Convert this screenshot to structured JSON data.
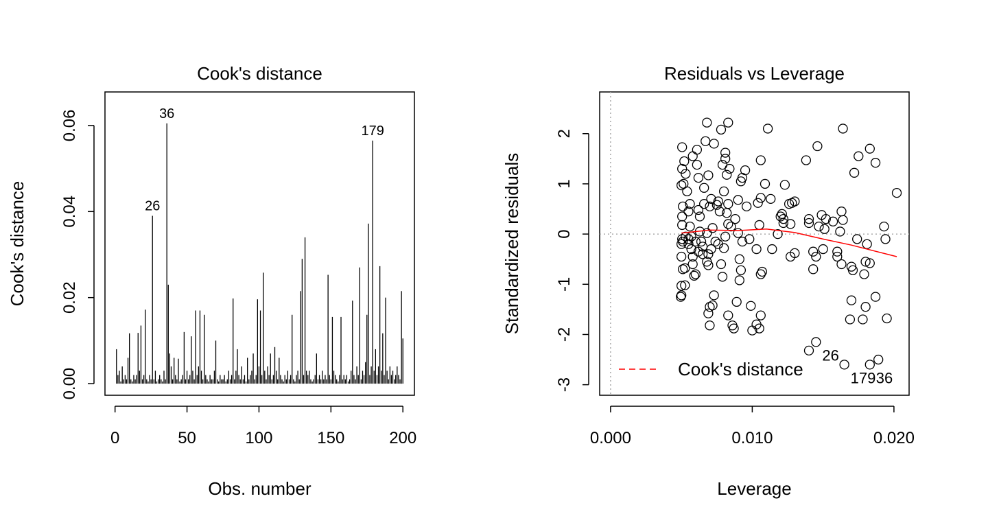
{
  "chart_data": [
    {
      "type": "spike",
      "title": "Cook's distance",
      "xlabel": "Obs. number",
      "ylabel": "Cook's distance",
      "color": "#000000",
      "x": [
        1,
        2,
        3,
        4,
        5,
        6,
        7,
        8,
        9,
        10,
        11,
        12,
        13,
        14,
        15,
        16,
        17,
        18,
        19,
        20,
        21,
        22,
        23,
        24,
        25,
        26,
        27,
        28,
        29,
        30,
        31,
        32,
        33,
        34,
        35,
        36,
        37,
        38,
        39,
        40,
        41,
        42,
        43,
        44,
        45,
        46,
        47,
        48,
        49,
        50,
        51,
        52,
        53,
        54,
        55,
        56,
        57,
        58,
        59,
        60,
        61,
        62,
        63,
        64,
        65,
        66,
        67,
        68,
        69,
        70,
        71,
        72,
        73,
        74,
        75,
        76,
        77,
        78,
        79,
        80,
        81,
        82,
        83,
        84,
        85,
        86,
        87,
        88,
        89,
        90,
        91,
        92,
        93,
        94,
        95,
        96,
        97,
        98,
        99,
        100,
        101,
        102,
        103,
        104,
        105,
        106,
        107,
        108,
        109,
        110,
        111,
        112,
        113,
        114,
        115,
        116,
        117,
        118,
        119,
        120,
        121,
        122,
        123,
        124,
        125,
        126,
        127,
        128,
        129,
        130,
        131,
        132,
        133,
        134,
        135,
        136,
        137,
        138,
        139,
        140,
        141,
        142,
        143,
        144,
        145,
        146,
        147,
        148,
        149,
        150,
        151,
        152,
        153,
        154,
        155,
        156,
        157,
        158,
        159,
        160,
        161,
        162,
        163,
        164,
        165,
        166,
        167,
        168,
        169,
        170,
        171,
        172,
        173,
        174,
        175,
        176,
        177,
        178,
        179,
        180,
        181,
        182,
        183,
        184,
        185,
        186,
        187,
        188,
        189,
        190,
        191,
        192,
        193,
        194,
        195,
        196,
        197,
        198,
        199,
        200
      ],
      "values": [
        0.008,
        0.002,
        0.003,
        0.0005,
        0.004,
        0.001,
        0.002,
        0.001,
        0.006,
        0.0117,
        0.001,
        0.0005,
        0.002,
        0.001,
        0.002,
        0.0118,
        0.003,
        0.0135,
        0.001,
        0.002,
        0.0172,
        0.001,
        0.0005,
        0.002,
        0.001,
        0.039,
        0.001,
        0.003,
        0.0005,
        0.001,
        0.002,
        0.001,
        0.0005,
        0.003,
        0.001,
        0.0605,
        0.023,
        0.007,
        0.004,
        0.001,
        0.006,
        0.002,
        0.001,
        0.0058,
        0.0005,
        0.001,
        0.002,
        0.012,
        0.001,
        0.003,
        0.001,
        0.002,
        0.011,
        0.003,
        0.001,
        0.017,
        0.002,
        0.004,
        0.017,
        0.003,
        0.001,
        0.016,
        0.002,
        0.001,
        0.0005,
        0.002,
        0.001,
        0.001,
        0.003,
        0.01,
        0.001,
        0.0005,
        0.002,
        0.001,
        0.001,
        0.002,
        0.0005,
        0.001,
        0.003,
        0.001,
        0.002,
        0.0198,
        0.001,
        0.003,
        0.008,
        0.002,
        0.001,
        0.004,
        0.001,
        0.002,
        0.0005,
        0.006,
        0.001,
        0.002,
        0.003,
        0.007,
        0.001,
        0.002,
        0.0196,
        0.004,
        0.017,
        0.002,
        0.0258,
        0.003,
        0.001,
        0.004,
        0.002,
        0.007,
        0.001,
        0.002,
        0.0085,
        0.003,
        0.001,
        0.006,
        0.002,
        0.001,
        0.0005,
        0.002,
        0.001,
        0.003,
        0.001,
        0.002,
        0.016,
        0.001,
        0.0005,
        0.002,
        0.003,
        0.001,
        0.0215,
        0.029,
        0.002,
        0.034,
        0.003,
        0.002,
        0.003,
        0.001,
        0.0005,
        0.001,
        0.002,
        0.007,
        0.001,
        0.002,
        0.001,
        0.003,
        0.001,
        0.002,
        0.001,
        0.0253,
        0.002,
        0.001,
        0.0155,
        0.003,
        0.002,
        0.001,
        0.0005,
        0.002,
        0.0155,
        0.001,
        0.002,
        0.001,
        0.002,
        0.0005,
        0.001,
        0.003,
        0.0193,
        0.002,
        0.001,
        0.004,
        0.002,
        0.027,
        0.001,
        0.003,
        0.002,
        0.005,
        0.016,
        0.0372,
        0.002,
        0.004,
        0.0565,
        0.003,
        0.008,
        0.002,
        0.004,
        0.0273,
        0.003,
        0.0117,
        0.002,
        0.02,
        0.003,
        0.001,
        0.004,
        0.002,
        0.003,
        0.001,
        0.002,
        0.004,
        0.002,
        0.001,
        0.0215,
        0.0105
      ],
      "annotations": [
        {
          "text": "26",
          "x": 26
        },
        {
          "text": "36",
          "x": 36
        },
        {
          "text": "179",
          "x": 179
        }
      ],
      "xlim": [
        -7,
        208
      ],
      "ylim": [
        -0.0027,
        0.0678
      ],
      "xticks": [
        0,
        50,
        100,
        150,
        200
      ],
      "yticks": [
        {
          "value": 0,
          "label": "0.00"
        },
        {
          "value": 0.02,
          "label": "0.02"
        },
        {
          "value": 0.04,
          "label": "0.04"
        },
        {
          "value": 0.06,
          "label": "0.06"
        }
      ]
    },
    {
      "type": "scatter",
      "title": "Residuals vs Leverage",
      "xlabel": "Leverage",
      "ylabel": "Standardized residuals",
      "color": "#000000",
      "x": [
        0.00505,
        0.00505,
        0.005,
        0.00515,
        0.0051,
        0.00505,
        0.00505,
        0.00505,
        0.0051,
        0.005,
        0.0051,
        0.00525,
        0.005,
        0.00525,
        0.00495,
        0.005,
        0.0052,
        0.0053,
        0.0054,
        0.0056,
        0.0055,
        0.0056,
        0.0055,
        0.0057,
        0.0058,
        0.0058,
        0.006,
        0.0059,
        0.0058,
        0.0061,
        0.0061,
        0.0062,
        0.0062,
        0.0063,
        0.0064,
        0.0065,
        0.0066,
        0.0066,
        0.0067,
        0.0068,
        0.0069,
        0.007,
        0.0071,
        0.0068,
        0.0069,
        0.0068,
        0.0069,
        0.007,
        0.0069,
        0.007,
        0.0073,
        0.0072,
        0.0072,
        0.0074,
        0.0075,
        0.0076,
        0.0073,
        0.0078,
        0.0079,
        0.0081,
        0.0081,
        0.0083,
        0.0082,
        0.0084,
        0.008,
        0.0083,
        0.0082,
        0.0083,
        0.0085,
        0.0081,
        0.008,
        0.0078,
        0.0079,
        0.0083,
        0.0086,
        0.0087,
        0.0089,
        0.0091,
        0.0092,
        0.0091,
        0.0093,
        0.009,
        0.0088,
        0.009,
        0.0092,
        0.0093,
        0.0095,
        0.0096,
        0.0098,
        0.0099,
        0.01,
        0.0103,
        0.0105,
        0.0106,
        0.0106,
        0.0107,
        0.0103,
        0.0105,
        0.0104,
        0.0106,
        0.0106,
        0.0109,
        0.0111,
        0.0113,
        0.0114,
        0.0118,
        0.012,
        0.0121,
        0.0122,
        0.0122,
        0.0123,
        0.0126,
        0.0128,
        0.013,
        0.0127,
        0.013,
        0.0127,
        0.0138,
        0.014,
        0.014,
        0.014,
        0.0145,
        0.0143,
        0.0143,
        0.0145,
        0.0146,
        0.0147,
        0.0149,
        0.0151,
        0.0152,
        0.015,
        0.0157,
        0.016,
        0.016,
        0.0162,
        0.0163,
        0.0164,
        0.0163,
        0.0164,
        0.0165,
        0.017,
        0.0171,
        0.017,
        0.0169,
        0.0172,
        0.0175,
        0.0174,
        0.0178,
        0.0179,
        0.018,
        0.0181,
        0.0183,
        0.018,
        0.0183,
        0.0183,
        0.0187,
        0.0187,
        0.0189,
        0.0193,
        0.0194,
        0.0195,
        0.0202,
        0.005,
        0.0053,
        0.0055,
        0.0057,
        0.006,
        0.0062,
        0.0065,
        0.0063,
        0.0071,
        0.0076,
        0.0077
      ],
      "values": [
        1.73,
        1.3,
        0.97,
        1.0,
        0.55,
        0.35,
        0.18,
        -0.1,
        -0.15,
        -0.45,
        -0.7,
        -0.68,
        -1.03,
        -1.02,
        -1.25,
        -1.22,
        1.45,
        1.2,
        0.85,
        0.6,
        0.45,
        0.15,
        -0.2,
        -0.3,
        -0.45,
        -0.6,
        -0.8,
        -0.83,
        1.55,
        1.68,
        1.38,
        1.12,
        0.48,
        0.05,
        -0.15,
        -0.25,
        0.6,
        0.92,
        1.85,
        2.22,
        1.17,
        0.55,
        0.7,
        0.02,
        -0.4,
        -0.55,
        -0.62,
        -1.45,
        -1.58,
        -1.82,
        -1.22,
        -1.42,
        0.12,
        -0.15,
        0.58,
        0.65,
        1.8,
        2.08,
        1.38,
        1.62,
        1.5,
        2.22,
        1.18,
        1.3,
        0.85,
        0.6,
        0.42,
        0.2,
        0.15,
        -0.05,
        -0.28,
        -0.6,
        -0.85,
        -1.62,
        -1.82,
        -1.88,
        -1.35,
        -0.92,
        -0.72,
        -0.5,
        -0.15,
        0.02,
        0.3,
        0.68,
        1.05,
        1.12,
        1.27,
        0.55,
        -0.1,
        -1.43,
        -1.92,
        -1.8,
        -1.88,
        -1.62,
        -0.8,
        -0.75,
        -0.3,
        0.18,
        0.62,
        0.72,
        1.47,
        1.0,
        2.1,
        0.7,
        -0.3,
        0.0,
        0.35,
        0.4,
        0.3,
        0.22,
        0.98,
        0.6,
        0.62,
        0.65,
        0.2,
        -0.38,
        -0.45,
        1.47,
        0.3,
        0.22,
        -2.32,
        -2.15,
        -0.7,
        -0.35,
        -0.45,
        1.75,
        0.15,
        0.38,
        0.1,
        0.3,
        -0.3,
        0.25,
        -0.35,
        -0.45,
        0.05,
        0.45,
        0.28,
        -0.6,
        2.1,
        -2.6,
        -0.65,
        -0.72,
        -1.32,
        -1.7,
        1.22,
        1.55,
        -0.1,
        -1.7,
        -0.8,
        -0.55,
        -0.2,
        -0.58,
        -1.45,
        -2.6,
        1.7,
        1.42,
        -1.25,
        -2.5,
        0.15,
        -0.1,
        -1.68,
        0.82,
        -0.2,
        -0.05,
        -0.1,
        -0.05,
        -0.15,
        -0.35,
        -0.4,
        0.35,
        -0.3,
        -0.2,
        0.45
      ],
      "annotations": [
        {
          "text": "26",
          "x": 0.0145,
          "y": -2.15
        },
        {
          "text": "179",
          "x": 0.0165,
          "y": -2.6
        },
        {
          "text": "36",
          "x": 0.0183,
          "y": -2.6
        }
      ],
      "smooth": {
        "color": "#ff0000",
        "x": [
          0.005,
          0.007,
          0.009,
          0.011,
          0.013,
          0.015,
          0.017,
          0.0202
        ],
        "values": [
          0.02,
          0.08,
          0.07,
          0.1,
          0.03,
          -0.1,
          -0.22,
          -0.45
        ]
      },
      "reference_lines": {
        "x": 0,
        "y": 0,
        "color": "#aaaaaa"
      },
      "legend": {
        "label": "Cook's distance",
        "color": "#ff0000",
        "position": "bottomleft"
      },
      "xlim": [
        -0.00077,
        0.02107
      ],
      "ylim": [
        -3.21,
        2.83
      ],
      "xticks": [
        {
          "value": 0,
          "label": "0.000"
        },
        {
          "value": 0.01,
          "label": "0.010"
        },
        {
          "value": 0.02,
          "label": "0.020"
        }
      ],
      "yticks": [
        -3,
        -2,
        -1,
        0,
        1,
        2
      ]
    }
  ]
}
